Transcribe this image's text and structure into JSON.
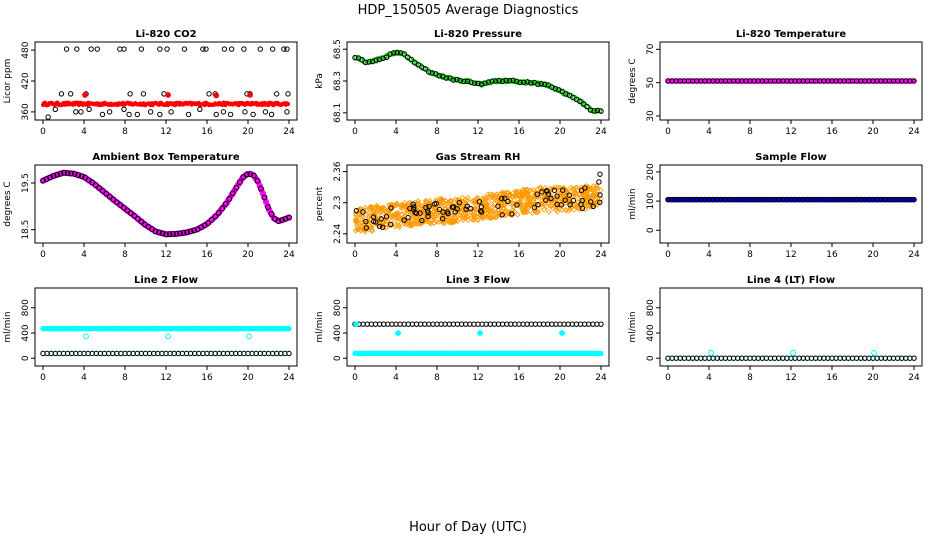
{
  "figure": {
    "title": "HDP_150505  Average Diagnostics",
    "xlabel": "Hour of Day (UTC)"
  },
  "chart_data": [
    {
      "type": "scatter",
      "title": "Li-820 CO2",
      "xlabel": "",
      "ylabel": "Licor ppm",
      "xlim": [
        0,
        24
      ],
      "ylim": [
        352,
        488
      ],
      "xticks": [
        0,
        4,
        8,
        12,
        16,
        20,
        24
      ],
      "yticks": [
        360,
        420,
        480
      ],
      "series": [
        {
          "color": "#000000",
          "filled": false,
          "points": [
            [
              0.5,
              350
            ],
            [
              1.2,
              365
            ],
            [
              2.3,
              482
            ],
            [
              3.3,
              482
            ],
            [
              4.7,
              482
            ],
            [
              5.3,
              482
            ],
            [
              7.5,
              482
            ],
            [
              7.9,
              482
            ],
            [
              9.6,
              482
            ],
            [
              11.4,
              482
            ],
            [
              12.1,
              482
            ],
            [
              13.8,
              482
            ],
            [
              15.6,
              482
            ],
            [
              15.9,
              482
            ],
            [
              17.7,
              482
            ],
            [
              18.4,
              482
            ],
            [
              19.6,
              482
            ],
            [
              21.2,
              482
            ],
            [
              22.4,
              482
            ],
            [
              23.5,
              482
            ],
            [
              23.8,
              482
            ],
            [
              1.8,
              395
            ],
            [
              2.7,
              395
            ],
            [
              4.2,
              395
            ],
            [
              8.5,
              395
            ],
            [
              9.8,
              395
            ],
            [
              11.8,
              395
            ],
            [
              16.2,
              395
            ],
            [
              16.8,
              395
            ],
            [
              19.9,
              395
            ],
            [
              20.2,
              395
            ],
            [
              22.8,
              395
            ],
            [
              23.9,
              395
            ],
            [
              3.2,
              360
            ],
            [
              3.7,
              360
            ],
            [
              4.5,
              365
            ],
            [
              5.8,
              355
            ],
            [
              6.5,
              360
            ],
            [
              7.9,
              365
            ],
            [
              8.4,
              355
            ],
            [
              9.2,
              355
            ],
            [
              10.5,
              360
            ],
            [
              11.4,
              355
            ],
            [
              12.5,
              360
            ],
            [
              14.2,
              355
            ],
            [
              15.3,
              365
            ],
            [
              16.9,
              355
            ],
            [
              17.6,
              360
            ],
            [
              18.3,
              355
            ],
            [
              19.7,
              360
            ],
            [
              20.5,
              355
            ],
            [
              21.7,
              360
            ],
            [
              22.3,
              355
            ],
            [
              23.8,
              360
            ]
          ]
        },
        {
          "color": "#ff0000",
          "filled": true,
          "band": {
            "y": [
              373,
              378
            ],
            "xstart": 0,
            "xend": 24,
            "n": 240
          }
        },
        {
          "color": "#ff0000",
          "filled": false,
          "points": [
            [
              4.1,
              393
            ],
            [
              12.2,
              393
            ],
            [
              16.9,
              392
            ],
            [
              20.2,
              393
            ]
          ]
        }
      ]
    },
    {
      "type": "scatter",
      "title": "Li-820 Pressure",
      "xlabel": "",
      "ylabel": "kPa",
      "xlim": [
        0,
        24
      ],
      "ylim": [
        68.08,
        68.52
      ],
      "xticks": [
        0,
        4,
        8,
        12,
        16,
        20,
        24
      ],
      "yticks": [
        68.1,
        68.3,
        68.5
      ],
      "curve": [
        [
          0,
          68.45
        ],
        [
          0.5,
          68.44
        ],
        [
          1,
          68.42
        ],
        [
          1.5,
          68.42
        ],
        [
          2,
          68.43
        ],
        [
          2.5,
          68.44
        ],
        [
          3,
          68.45
        ],
        [
          3.5,
          68.47
        ],
        [
          4,
          68.48
        ],
        [
          4.5,
          68.48
        ],
        [
          5,
          68.46
        ],
        [
          5.5,
          68.43
        ],
        [
          6,
          68.41
        ],
        [
          6.5,
          68.39
        ],
        [
          7,
          68.37
        ],
        [
          7.5,
          68.35
        ],
        [
          8,
          68.34
        ],
        [
          8.5,
          68.33
        ],
        [
          9,
          68.32
        ],
        [
          9.5,
          68.31
        ],
        [
          10,
          68.31
        ],
        [
          10.5,
          68.3
        ],
        [
          11,
          68.3
        ],
        [
          11.5,
          68.29
        ],
        [
          12,
          68.28
        ],
        [
          12.5,
          68.28
        ],
        [
          13,
          68.29
        ],
        [
          13.5,
          68.3
        ],
        [
          14,
          68.3
        ],
        [
          14.5,
          68.3
        ],
        [
          15,
          68.3
        ],
        [
          15.5,
          68.3
        ],
        [
          16,
          68.29
        ],
        [
          16.5,
          68.29
        ],
        [
          17,
          68.29
        ],
        [
          17.5,
          68.29
        ],
        [
          18,
          68.28
        ],
        [
          18.5,
          68.28
        ],
        [
          19,
          68.27
        ],
        [
          19.5,
          68.25
        ],
        [
          20,
          68.24
        ],
        [
          20.5,
          68.22
        ],
        [
          21,
          68.21
        ],
        [
          21.5,
          68.19
        ],
        [
          22,
          68.17
        ],
        [
          22.5,
          68.15
        ],
        [
          23,
          68.12
        ],
        [
          23.5,
          68.11
        ],
        [
          24,
          68.11
        ]
      ],
      "series": [
        {
          "color": "#00cc00",
          "role": "fill"
        },
        {
          "color": "#000000",
          "role": "outline"
        }
      ]
    },
    {
      "type": "scatter",
      "title": "Li-820 Temperature",
      "xlabel": "",
      "ylabel": "degrees C",
      "xlim": [
        0,
        24
      ],
      "ylim": [
        30,
        72
      ],
      "xticks": [
        0,
        4,
        8,
        12,
        16,
        20,
        24
      ],
      "yticks": [
        30,
        50,
        70
      ],
      "constant": 51.0,
      "series": [
        {
          "color": "#ff00ff",
          "filled": true
        },
        {
          "color": "#000000",
          "filled": false
        }
      ]
    },
    {
      "type": "scatter",
      "title": "Ambient Box Temperature",
      "xlabel": "",
      "ylabel": "degrees C",
      "xlim": [
        0,
        24
      ],
      "ylim": [
        18.3,
        19.8
      ],
      "xticks": [
        0,
        4,
        8,
        12,
        16,
        20,
        24
      ],
      "yticks": [
        18.5,
        19.5
      ],
      "curve": [
        [
          0,
          19.55
        ],
        [
          1,
          19.65
        ],
        [
          2,
          19.72
        ],
        [
          3,
          19.7
        ],
        [
          4,
          19.63
        ],
        [
          5,
          19.48
        ],
        [
          6,
          19.3
        ],
        [
          7,
          19.12
        ],
        [
          8,
          18.95
        ],
        [
          9,
          18.78
        ],
        [
          10,
          18.6
        ],
        [
          11,
          18.46
        ],
        [
          12,
          18.4
        ],
        [
          13,
          18.41
        ],
        [
          14,
          18.44
        ],
        [
          15,
          18.5
        ],
        [
          16,
          18.62
        ],
        [
          17,
          18.82
        ],
        [
          18,
          19.1
        ],
        [
          19,
          19.45
        ],
        [
          19.5,
          19.62
        ],
        [
          20,
          19.7
        ],
        [
          20.5,
          19.68
        ],
        [
          21,
          19.52
        ],
        [
          21.5,
          19.25
        ],
        [
          22,
          18.95
        ],
        [
          22.5,
          18.75
        ],
        [
          23,
          18.68
        ],
        [
          23.5,
          18.72
        ],
        [
          24,
          18.76
        ]
      ],
      "series": [
        {
          "color": "#ff00ff",
          "filled": true
        },
        {
          "color": "#000000",
          "filled": false
        }
      ]
    },
    {
      "type": "scatter",
      "title": "Gas Stream RH",
      "xlabel": "",
      "ylabel": "percent",
      "xlim": [
        0,
        24
      ],
      "ylim": [
        2.23,
        2.365
      ],
      "xticks": [
        0,
        4,
        8,
        12,
        16,
        20,
        24
      ],
      "yticks": [
        2.24,
        2.3,
        2.36
      ],
      "trend": [
        [
          0,
          2.265
        ],
        [
          6,
          2.28
        ],
        [
          12,
          2.29
        ],
        [
          18,
          2.305
        ],
        [
          24,
          2.31
        ]
      ],
      "series": [
        {
          "color": "#ff9900",
          "filled": false,
          "spread": 0.024,
          "n": 900
        },
        {
          "color": "#000000",
          "filled": false,
          "spread": 0.02,
          "n": 80
        }
      ],
      "extra_points": [
        [
          23.9,
          2.355
        ],
        [
          23.8,
          2.34
        ],
        [
          23.9,
          2.315
        ]
      ]
    },
    {
      "type": "scatter",
      "title": "Sample Flow",
      "xlabel": "",
      "ylabel": "ml/min",
      "xlim": [
        0,
        24
      ],
      "ylim": [
        -30,
        210
      ],
      "xticks": [
        0,
        4,
        8,
        12,
        16,
        20,
        24
      ],
      "yticks": [
        0,
        100,
        200
      ],
      "constant": 105,
      "series": [
        {
          "color": "#0000cc",
          "filled": true
        },
        {
          "color": "#000000",
          "filled": false
        }
      ]
    },
    {
      "type": "scatter",
      "title": "Line 2 Flow",
      "xlabel": "",
      "ylabel": "ml/min",
      "xlim": [
        0,
        24
      ],
      "ylim": [
        -60,
        1050
      ],
      "xticks": [
        0,
        4,
        8,
        12,
        16,
        20,
        24
      ],
      "yticks": [
        0,
        400,
        800
      ],
      "series": [
        {
          "color": "#00ffff",
          "filled": true,
          "level": 470
        },
        {
          "color": "#00ffff",
          "filled": false,
          "level": 75,
          "points": [
            [
              4.2,
              345
            ],
            [
              12.2,
              345
            ],
            [
              20.1,
              345
            ]
          ]
        },
        {
          "color": "#000000",
          "filled": false,
          "level": 75
        }
      ]
    },
    {
      "type": "scatter",
      "title": "Line 3 Flow",
      "xlabel": "",
      "ylabel": "ml/min",
      "xlim": [
        0,
        24
      ],
      "ylim": [
        -60,
        1050
      ],
      "xticks": [
        0,
        4,
        8,
        12,
        16,
        20,
        24
      ],
      "yticks": [
        0,
        400,
        800
      ],
      "series": [
        {
          "color": "#000000",
          "filled": false,
          "level": 540
        },
        {
          "color": "#00ffff",
          "filled": true,
          "level": 75,
          "points": [
            [
              0.1,
              540
            ],
            [
              4.2,
              400
            ],
            [
              12.2,
              400
            ],
            [
              20.2,
              400
            ]
          ]
        }
      ]
    },
    {
      "type": "scatter",
      "title": "Line 4 (LT) Flow",
      "xlabel": "",
      "ylabel": "ml/min",
      "xlim": [
        0,
        24
      ],
      "ylim": [
        -60,
        1050
      ],
      "xticks": [
        0,
        4,
        8,
        12,
        16,
        20,
        24
      ],
      "yticks": [
        0,
        400,
        800
      ],
      "series": [
        {
          "color": "#00ffff",
          "filled": false,
          "level": 0,
          "points": [
            [
              4.2,
              85
            ],
            [
              12.2,
              85
            ],
            [
              20.1,
              85
            ]
          ]
        },
        {
          "color": "#000000",
          "filled": false,
          "level": 0
        }
      ]
    }
  ]
}
